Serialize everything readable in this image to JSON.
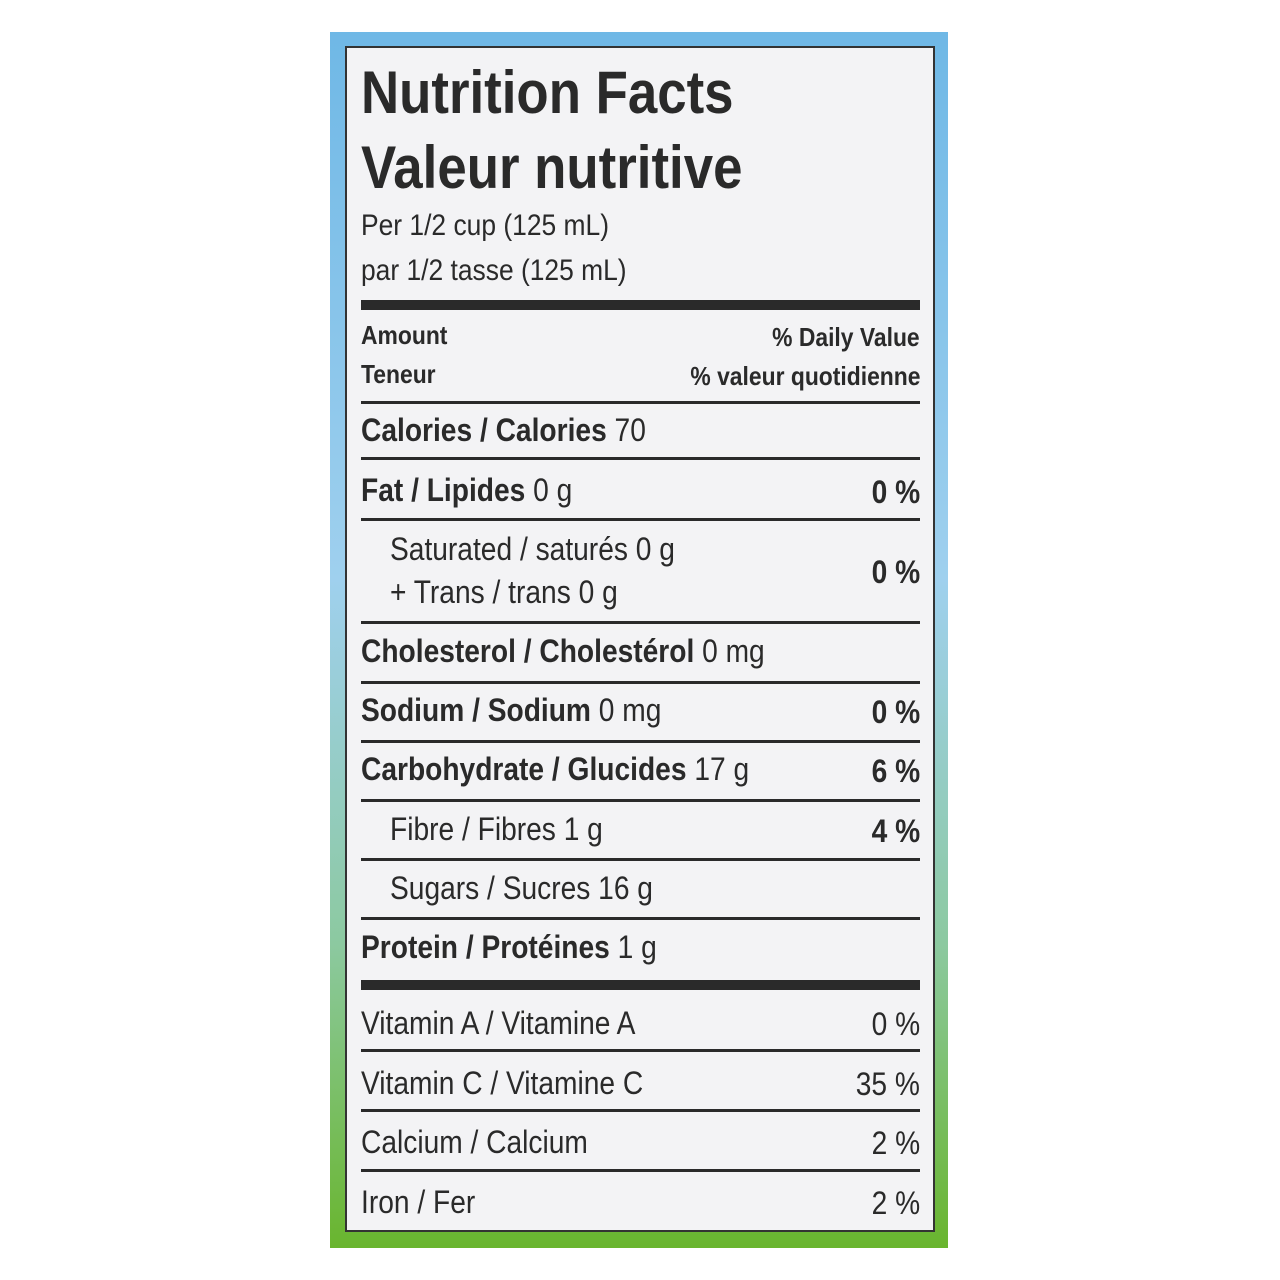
{
  "header": {
    "title_en": "Nutrition Facts",
    "title_fr": "Valeur nutritive",
    "serving_en": "Per 1/2 cup (125 mL)",
    "serving_fr": "par 1/2 tasse (125 mL)"
  },
  "columns": {
    "amount_en": "Amount",
    "amount_fr": "Teneur",
    "dv_en": "% Daily Value",
    "dv_fr": "% valeur quotidienne"
  },
  "nutrients": [
    {
      "label": "Calories / Calories",
      "value": "70",
      "dv": ""
    },
    {
      "label": "Fat / Lipides",
      "value": "0 g",
      "dv": "0 %"
    },
    {
      "label": "Saturated / saturés 0 g",
      "label2": "+ Trans / trans 0 g",
      "dv": "0 %"
    },
    {
      "label": "Cholesterol / Cholestérol",
      "value": "0 mg",
      "dv": ""
    },
    {
      "label": "Sodium / Sodium",
      "value": "0 mg",
      "dv": "0 %"
    },
    {
      "label": "Carbohydrate / Glucides",
      "value": "17 g",
      "dv": "6 %"
    },
    {
      "label": "Fibre / Fibres 1 g",
      "dv": "4 %"
    },
    {
      "label": "Sugars / Sucres 16 g",
      "dv": ""
    },
    {
      "label": "Protein / Protéines",
      "value": "1 g",
      "dv": ""
    }
  ],
  "vitamins": [
    {
      "label": "Vitamin A / Vitamine A",
      "dv": "0 %"
    },
    {
      "label": "Vitamin C / Vitamine C",
      "dv": "35 %"
    },
    {
      "label": "Calcium / Calcium",
      "dv": "2 %"
    },
    {
      "label": "Iron / Fer",
      "dv": "2 %"
    }
  ],
  "colors": {
    "border_top": "#6fb8e6",
    "border_bottom": "#69b52e",
    "panel": "#f3f3f5",
    "text": "#2a2a2a"
  }
}
